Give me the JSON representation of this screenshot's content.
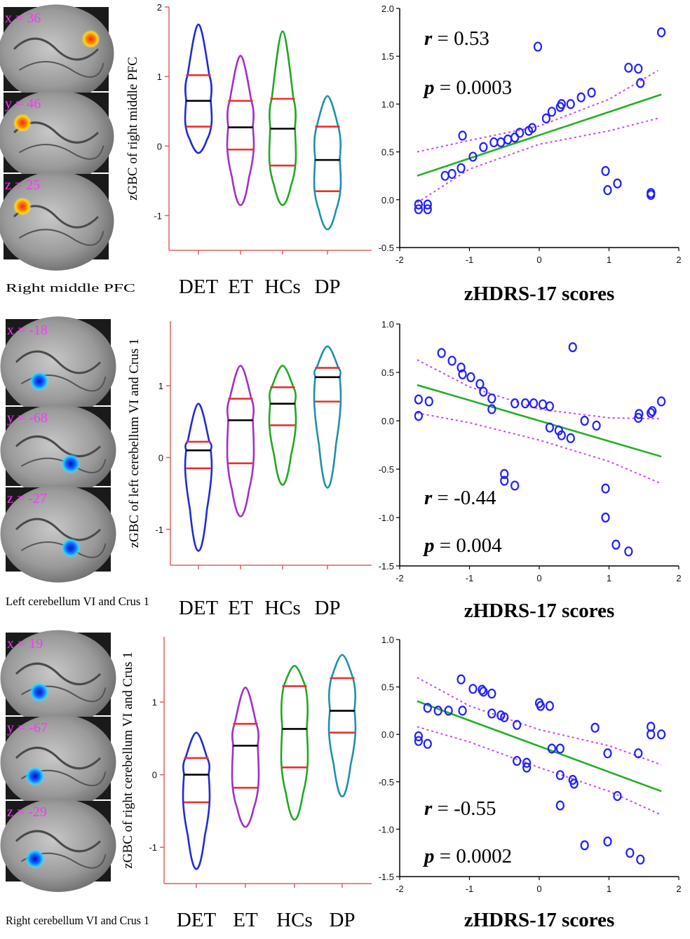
{
  "colors": {
    "det": "#1f2bd6",
    "et": "#a030c8",
    "hcs": "#22a822",
    "dp": "#1e90a8",
    "quartile": "#e83030",
    "median": "#000000",
    "axis": "#e06060",
    "point": "#2020ff",
    "fit": "#22b022",
    "ci": "#cc44ee",
    "coord": "#ff33ff"
  },
  "panels": [
    {
      "region_caption": "Right middle PFC",
      "brain_coords": [
        "x = 36",
        "y = 46",
        "z = 25"
      ],
      "blob_color": "hot",
      "stats": {
        "r_label": "r",
        "r_value": " = 0.53",
        "p_label": "p",
        "p_value": " = 0.0003",
        "pos": "top"
      }
    },
    {
      "region_caption": "Left cerebellum VI and Crus 1",
      "brain_coords": [
        "x = -18",
        "y = -68",
        "z = -27"
      ],
      "blob_color": "cool",
      "stats": {
        "r_label": "r",
        "r_value": " = -0.44",
        "p_label": "p",
        "p_value": " = 0.004",
        "pos": "bottom"
      }
    },
    {
      "region_caption": "Right cerebellum VI and Crus 1",
      "brain_coords": [
        "x = 19",
        "y = -67",
        "z = -29"
      ],
      "blob_color": "cool",
      "stats": {
        "r_label": "r",
        "r_value": " = -0.55",
        "p_label": "p",
        "p_value": " = 0.0002",
        "pos": "bottom"
      }
    }
  ],
  "chart_data": [
    {
      "type": "violin",
      "ylabel": "zGBC of right  middle PFC",
      "ylim": [
        -1.5,
        2
      ],
      "yticks": [
        -1,
        0,
        1,
        2
      ],
      "categories": [
        "DET",
        "ET",
        "HCs",
        "DP"
      ],
      "groups": [
        {
          "min": -0.1,
          "max": 1.75,
          "q1": 0.28,
          "median": 0.65,
          "q3": 1.02
        },
        {
          "min": -0.85,
          "max": 1.3,
          "q1": -0.05,
          "median": 0.27,
          "q3": 0.65
        },
        {
          "min": -0.85,
          "max": 1.65,
          "q1": -0.28,
          "median": 0.25,
          "q3": 0.68
        },
        {
          "min": -1.2,
          "max": 0.72,
          "q1": -0.65,
          "median": -0.2,
          "q3": 0.28
        }
      ]
    },
    {
      "type": "scatter",
      "title": "",
      "xlabel": "zHDRS-17 scores",
      "xlim": [
        -2,
        2
      ],
      "ylim": [
        -0.5,
        2
      ],
      "xticks": [
        -2,
        -1,
        0,
        1,
        2
      ],
      "yticks": [
        -0.5,
        0,
        0.5,
        1,
        1.5,
        2
      ],
      "ytick_labels": [
        "-0.5",
        "0.0",
        "0.5",
        "1.0",
        "1.5",
        "2.0"
      ],
      "fit": {
        "x": [
          -1.75,
          1.75
        ],
        "y": [
          0.25,
          1.1
        ]
      },
      "ci_upper": [
        [
          -1.75,
          0.5
        ],
        [
          -1,
          0.62
        ],
        [
          0,
          0.77
        ],
        [
          1,
          1.05
        ],
        [
          1.7,
          1.35
        ]
      ],
      "ci_lower": [
        [
          -1.75,
          -0.03
        ],
        [
          -1,
          0.32
        ],
        [
          0,
          0.58
        ],
        [
          1,
          0.72
        ],
        [
          1.7,
          0.85
        ]
      ],
      "points": [
        [
          -1.73,
          -0.05
        ],
        [
          -1.73,
          -0.1
        ],
        [
          -1.6,
          -0.05
        ],
        [
          -1.6,
          -0.1
        ],
        [
          -1.35,
          0.25
        ],
        [
          -1.25,
          0.27
        ],
        [
          -1.12,
          0.33
        ],
        [
          -1.1,
          0.67
        ],
        [
          -0.95,
          0.45
        ],
        [
          -0.8,
          0.55
        ],
        [
          -0.65,
          0.6
        ],
        [
          -0.55,
          0.6
        ],
        [
          -0.45,
          0.63
        ],
        [
          -0.35,
          0.65
        ],
        [
          -0.28,
          0.7
        ],
        [
          -0.15,
          0.72
        ],
        [
          -0.1,
          0.75
        ],
        [
          -0.02,
          1.6
        ],
        [
          0.1,
          0.85
        ],
        [
          0.18,
          0.92
        ],
        [
          0.3,
          0.97
        ],
        [
          0.32,
          1.0
        ],
        [
          0.45,
          1.0
        ],
        [
          0.6,
          1.07
        ],
        [
          0.75,
          1.12
        ],
        [
          0.95,
          0.3
        ],
        [
          0.98,
          0.1
        ],
        [
          1.12,
          0.17
        ],
        [
          1.28,
          1.38
        ],
        [
          1.42,
          1.37
        ],
        [
          1.45,
          1.22
        ],
        [
          1.6,
          0.05
        ],
        [
          1.6,
          0.07
        ],
        [
          1.75,
          1.75
        ]
      ]
    },
    {
      "type": "violin",
      "ylabel": "zGBC of left cerebellum VI and Crus 1",
      "ylim": [
        -1.5,
        1.9
      ],
      "yticks": [
        -1,
        0,
        1
      ],
      "categories": [
        "DET",
        "ET",
        "HCs",
        "DP"
      ],
      "groups": [
        {
          "min": -1.3,
          "max": 0.75,
          "q1": -0.15,
          "median": 0.1,
          "q3": 0.22
        },
        {
          "min": -0.82,
          "max": 1.28,
          "q1": -0.08,
          "median": 0.52,
          "q3": 0.82
        },
        {
          "min": -0.38,
          "max": 1.28,
          "q1": 0.45,
          "median": 0.75,
          "q3": 0.98
        },
        {
          "min": -0.42,
          "max": 1.55,
          "q1": 0.78,
          "median": 1.12,
          "q3": 1.25
        }
      ]
    },
    {
      "type": "scatter",
      "title": "",
      "xlabel": "zHDRS-17 scores",
      "xlim": [
        -2,
        2
      ],
      "ylim": [
        -1.5,
        1
      ],
      "xticks": [
        -2,
        -1,
        0,
        1,
        2
      ],
      "yticks": [
        -1.5,
        -1,
        -0.5,
        0,
        0.5,
        1
      ],
      "ytick_labels": [
        "-1.5",
        "-1.0",
        "-0.5",
        "0.0",
        "0.5",
        "1.0"
      ],
      "fit": {
        "x": [
          -1.75,
          1.75
        ],
        "y": [
          0.37,
          -0.37
        ]
      },
      "ci_upper": [
        [
          -1.75,
          0.63
        ],
        [
          -1,
          0.35
        ],
        [
          0,
          0.12
        ],
        [
          1,
          0.03
        ],
        [
          1.75,
          0.02
        ]
      ],
      "ci_lower": [
        [
          -1.75,
          0.08
        ],
        [
          -1,
          -0.02
        ],
        [
          0,
          -0.2
        ],
        [
          1,
          -0.42
        ],
        [
          1.75,
          -0.65
        ]
      ],
      "points": [
        [
          -1.73,
          0.22
        ],
        [
          -1.73,
          0.05
        ],
        [
          -1.58,
          0.2
        ],
        [
          -1.4,
          0.7
        ],
        [
          -1.25,
          0.62
        ],
        [
          -1.12,
          0.55
        ],
        [
          -1.1,
          0.48
        ],
        [
          -0.98,
          0.45
        ],
        [
          -0.85,
          0.38
        ],
        [
          -0.8,
          0.3
        ],
        [
          -0.68,
          0.23
        ],
        [
          -0.68,
          0.12
        ],
        [
          -0.5,
          -0.55
        ],
        [
          -0.5,
          -0.62
        ],
        [
          -0.35,
          -0.67
        ],
        [
          -0.35,
          0.18
        ],
        [
          -0.2,
          0.18
        ],
        [
          -0.08,
          0.18
        ],
        [
          0.05,
          0.17
        ],
        [
          0.15,
          0.15
        ],
        [
          0.15,
          -0.07
        ],
        [
          0.28,
          -0.1
        ],
        [
          0.32,
          -0.15
        ],
        [
          0.45,
          -0.18
        ],
        [
          0.48,
          0.76
        ],
        [
          0.65,
          0.0
        ],
        [
          0.82,
          -0.05
        ],
        [
          0.95,
          -0.7
        ],
        [
          0.95,
          -1.0
        ],
        [
          1.1,
          -1.28
        ],
        [
          1.28,
          -1.35
        ],
        [
          1.42,
          0.03
        ],
        [
          1.43,
          0.07
        ],
        [
          1.6,
          0.08
        ],
        [
          1.62,
          0.1
        ],
        [
          1.75,
          0.2
        ]
      ]
    },
    {
      "type": "violin",
      "ylabel": "zGBC of right cerebellum VI  and Crus 1",
      "ylim": [
        -1.5,
        1.9
      ],
      "yticks": [
        -1,
        0,
        1
      ],
      "categories": [
        "DET",
        "ET",
        "HCs",
        "DP"
      ],
      "groups": [
        {
          "min": -1.3,
          "max": 0.58,
          "q1": -0.38,
          "median": 0.0,
          "q3": 0.23
        },
        {
          "min": -0.72,
          "max": 1.2,
          "q1": -0.18,
          "median": 0.4,
          "q3": 0.7
        },
        {
          "min": -0.62,
          "max": 1.5,
          "q1": 0.1,
          "median": 0.63,
          "q3": 1.22
        },
        {
          "min": -0.3,
          "max": 1.65,
          "q1": 0.58,
          "median": 0.88,
          "q3": 1.33
        }
      ]
    },
    {
      "type": "scatter",
      "title": "",
      "xlabel": "zHDRS-17 scores",
      "xlim": [
        -2,
        2
      ],
      "ylim": [
        -1.5,
        1
      ],
      "xticks": [
        -2,
        -1,
        0,
        1,
        2
      ],
      "yticks": [
        -1.5,
        -1,
        -0.5,
        0,
        0.5,
        1
      ],
      "ytick_labels": [
        "-1.5",
        "-1.0",
        "-0.5",
        "0.0",
        "0.5",
        "1.0"
      ],
      "fit": {
        "x": [
          -1.75,
          1.75
        ],
        "y": [
          0.35,
          -0.6
        ]
      },
      "ci_upper": [
        [
          -1.75,
          0.6
        ],
        [
          -1,
          0.3
        ],
        [
          0,
          0.05
        ],
        [
          1,
          -0.12
        ],
        [
          1.75,
          -0.32
        ]
      ],
      "ci_lower": [
        [
          -1.75,
          0.08
        ],
        [
          -1,
          -0.08
        ],
        [
          0,
          -0.35
        ],
        [
          1,
          -0.6
        ],
        [
          1.75,
          -0.85
        ]
      ],
      "points": [
        [
          -1.73,
          -0.02
        ],
        [
          -1.73,
          -0.07
        ],
        [
          -1.6,
          -0.1
        ],
        [
          -1.6,
          0.28
        ],
        [
          -1.45,
          0.25
        ],
        [
          -1.3,
          0.25
        ],
        [
          -1.12,
          0.58
        ],
        [
          -1.1,
          0.25
        ],
        [
          -0.95,
          0.48
        ],
        [
          -0.82,
          0.47
        ],
        [
          -0.8,
          0.45
        ],
        [
          -0.68,
          0.43
        ],
        [
          -0.68,
          0.22
        ],
        [
          -0.55,
          0.2
        ],
        [
          -0.5,
          0.18
        ],
        [
          -0.32,
          0.1
        ],
        [
          -0.32,
          -0.28
        ],
        [
          -0.18,
          -0.3
        ],
        [
          -0.18,
          -0.35
        ],
        [
          0.0,
          0.33
        ],
        [
          0.02,
          0.3
        ],
        [
          0.15,
          0.3
        ],
        [
          0.18,
          -0.15
        ],
        [
          0.3,
          -0.15
        ],
        [
          0.3,
          -0.43
        ],
        [
          0.3,
          -0.75
        ],
        [
          0.48,
          -0.48
        ],
        [
          0.5,
          -0.52
        ],
        [
          0.65,
          -1.17
        ],
        [
          0.8,
          0.07
        ],
        [
          0.98,
          -0.2
        ],
        [
          0.98,
          -1.13
        ],
        [
          1.12,
          -0.65
        ],
        [
          1.3,
          -1.25
        ],
        [
          1.42,
          -0.2
        ],
        [
          1.45,
          -1.32
        ],
        [
          1.6,
          0.08
        ],
        [
          1.6,
          0.0
        ],
        [
          1.75,
          0.0
        ]
      ]
    }
  ]
}
